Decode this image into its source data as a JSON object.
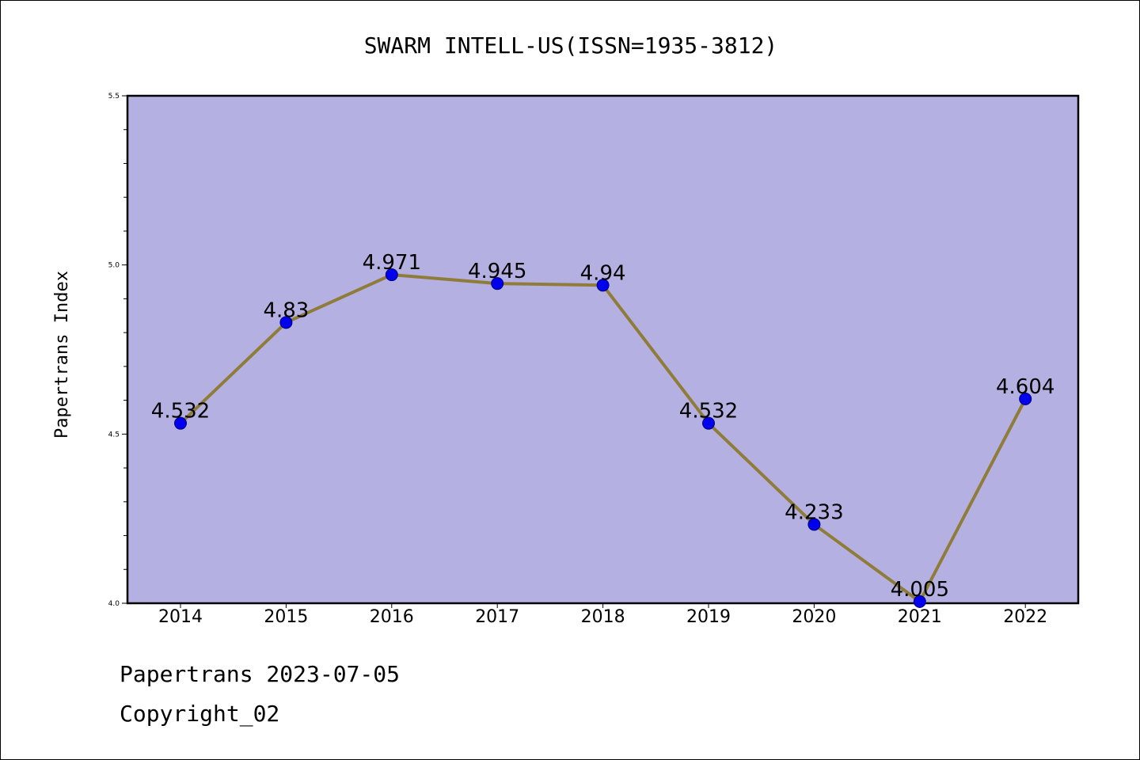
{
  "colors": {
    "plot_background": "#b5b0e2",
    "line": "#8f7c39",
    "marker": "#0000ee",
    "marker_edge": "#00007a",
    "axis": "#000000"
  },
  "chart_data": {
    "type": "line",
    "title": "SWARM INTELL-US(ISSN=1935-3812)",
    "xlabel": "",
    "ylabel": "Papertrans Index",
    "categories": [
      "2014",
      "2015",
      "2016",
      "2017",
      "2018",
      "2019",
      "2020",
      "2021",
      "2022"
    ],
    "series": [
      {
        "values": [
          4.532,
          4.83,
          4.971,
          4.945,
          4.94,
          4.532,
          4.233,
          4.005,
          4.604
        ],
        "labels": [
          "4.532",
          "4.83",
          "4.971",
          "4.945",
          "4.94",
          "4.532",
          "4.233",
          "4.005",
          "4.604"
        ]
      }
    ],
    "ylim": [
      4.0,
      5.5
    ],
    "yticks": [
      "4.0",
      "4.5",
      "5.0",
      "5.5"
    ],
    "ytick_values": [
      4.0,
      4.5,
      5.0,
      5.5
    ],
    "grid": false,
    "legend": "none"
  },
  "footer": {
    "line1": "Papertrans 2023-07-05",
    "line2": "Copyright_02"
  }
}
